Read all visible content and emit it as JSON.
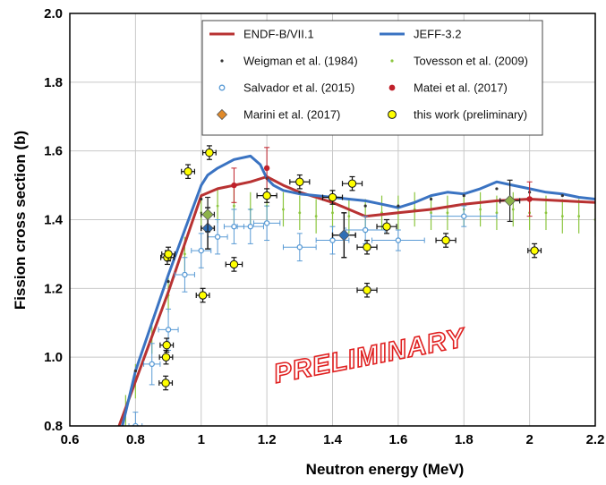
{
  "chart_data": {
    "type": "scatter",
    "xlabel": "Neutron energy (MeV)",
    "ylabel": "Fission cross section (b)",
    "xlim": [
      0.6,
      2.2
    ],
    "ylim": [
      0.8,
      2.0
    ],
    "xticks": [
      "0.6",
      "0.8",
      "1",
      "1.2",
      "1.4",
      "1.6",
      "1.8",
      "2",
      "2.2"
    ],
    "yticks": [
      "0.8",
      "1.0",
      "1.2",
      "1.4",
      "1.6",
      "1.8",
      "2.0"
    ],
    "grid": true,
    "legend_position": "top-right",
    "watermark": "PRELIMINARY",
    "series": [
      {
        "name": "ENDF-B/VII.1",
        "kind": "line",
        "color": "#b83232",
        "x": [
          0.75,
          0.8,
          0.85,
          0.9,
          0.95,
          1.0,
          1.05,
          1.1,
          1.15,
          1.2,
          1.25,
          1.3,
          1.35,
          1.4,
          1.45,
          1.5,
          1.6,
          1.7,
          1.8,
          1.9,
          2.0,
          2.1,
          2.2
        ],
        "y": [
          0.8,
          0.93,
          1.06,
          1.19,
          1.33,
          1.47,
          1.49,
          1.5,
          1.51,
          1.525,
          1.5,
          1.48,
          1.465,
          1.45,
          1.43,
          1.41,
          1.42,
          1.43,
          1.445,
          1.455,
          1.46,
          1.455,
          1.45
        ]
      },
      {
        "name": "JEFF-3.2",
        "kind": "line",
        "color": "#3a73c2",
        "x": [
          0.76,
          0.8,
          0.85,
          0.9,
          0.95,
          1.0,
          1.02,
          1.05,
          1.1,
          1.15,
          1.18,
          1.2,
          1.22,
          1.25,
          1.3,
          1.35,
          1.4,
          1.45,
          1.5,
          1.55,
          1.6,
          1.65,
          1.7,
          1.75,
          1.8,
          1.85,
          1.9,
          1.95,
          2.0,
          2.05,
          2.1,
          2.15,
          2.2
        ],
        "y": [
          0.8,
          0.96,
          1.1,
          1.24,
          1.37,
          1.5,
          1.53,
          1.55,
          1.575,
          1.585,
          1.56,
          1.52,
          1.5,
          1.485,
          1.475,
          1.47,
          1.465,
          1.46,
          1.455,
          1.445,
          1.435,
          1.45,
          1.47,
          1.48,
          1.475,
          1.49,
          1.51,
          1.5,
          1.49,
          1.48,
          1.475,
          1.465,
          1.46
        ]
      },
      {
        "name": "Weigman et al. (1984)",
        "kind": "points",
        "color": "#333333",
        "x": [
          0.8,
          0.9,
          1.0,
          1.1,
          1.2,
          1.3,
          1.4,
          1.5,
          1.6,
          1.7,
          1.8,
          1.9,
          2.0,
          2.1
        ],
        "y": [
          0.96,
          1.22,
          1.46,
          1.5,
          1.52,
          1.48,
          1.46,
          1.44,
          1.44,
          1.46,
          1.47,
          1.49,
          1.48,
          1.47
        ]
      },
      {
        "name": "Tovesson et al. (2009)",
        "kind": "band",
        "color": "#8cc63f",
        "x": [
          0.77,
          0.8,
          0.85,
          0.9,
          0.95,
          1.0,
          1.05,
          1.1,
          1.15,
          1.2,
          1.25,
          1.3,
          1.35,
          1.4,
          1.45,
          1.5,
          1.55,
          1.6,
          1.65,
          1.7,
          1.75,
          1.8,
          1.85,
          1.9,
          1.95,
          2.0,
          2.05,
          2.1,
          2.15,
          2.2
        ],
        "y": [
          0.84,
          0.93,
          1.06,
          1.18,
          1.3,
          1.42,
          1.44,
          1.44,
          1.43,
          1.44,
          1.43,
          1.42,
          1.41,
          1.42,
          1.41,
          1.41,
          1.42,
          1.42,
          1.43,
          1.42,
          1.42,
          1.43,
          1.43,
          1.42,
          1.43,
          1.42,
          1.42,
          1.41,
          1.41,
          1.4
        ],
        "err": 0.05
      },
      {
        "name": "Salvador et al. (2015)",
        "kind": "points",
        "color": "#5a9bd5",
        "x": [
          0.8,
          0.85,
          0.9,
          0.95,
          1.0,
          1.05,
          1.1,
          1.15,
          1.2,
          1.3,
          1.4,
          1.5,
          1.6,
          1.8
        ],
        "y": [
          0.8,
          0.98,
          1.08,
          1.24,
          1.31,
          1.35,
          1.38,
          1.38,
          1.39,
          1.32,
          1.34,
          1.37,
          1.34,
          1.41
        ],
        "xerr": [
          0.02,
          0.025,
          0.03,
          0.03,
          0.03,
          0.03,
          0.03,
          0.04,
          0.04,
          0.05,
          0.05,
          0.06,
          0.08,
          0.1
        ],
        "yerr": [
          0.04,
          0.06,
          0.06,
          0.05,
          0.05,
          0.05,
          0.05,
          0.05,
          0.05,
          0.04,
          0.04,
          0.04,
          0.03,
          0.03
        ]
      },
      {
        "name": "Matei et al. (2017)",
        "kind": "points",
        "color": "#c0202a",
        "x": [
          1.1,
          1.2,
          2.0
        ],
        "y": [
          1.5,
          1.55,
          1.46
        ],
        "yerr": [
          0.05,
          0.06,
          0.05
        ]
      },
      {
        "name": "Marini et al. (2017)",
        "kind": "points",
        "color": "#e08a2a",
        "x": [
          1.02,
          1.94
        ],
        "y": [
          1.415,
          1.455
        ],
        "xerr": [
          0.02,
          0.03
        ],
        "yerr": [
          0.05,
          0.06
        ]
      },
      {
        "name": "this work (preliminary)",
        "kind": "points",
        "color": "#ffff00",
        "x": [
          0.892,
          0.893,
          0.895,
          0.897,
          0.9,
          0.96,
          1.005,
          1.025,
          1.1,
          1.2,
          1.3,
          1.4,
          1.46,
          1.505,
          1.505,
          1.565,
          1.745,
          2.015
        ],
        "y": [
          0.925,
          1.0,
          1.035,
          1.29,
          1.3,
          1.54,
          1.18,
          1.595,
          1.27,
          1.47,
          1.51,
          1.465,
          1.505,
          1.32,
          1.195,
          1.38,
          1.34,
          1.31
        ],
        "xerr": [
          0.02,
          0.02,
          0.02,
          0.02,
          0.02,
          0.02,
          0.02,
          0.02,
          0.025,
          0.03,
          0.03,
          0.03,
          0.03,
          0.03,
          0.03,
          0.03,
          0.03,
          0.02
        ],
        "yerr": [
          0.02,
          0.02,
          0.02,
          0.02,
          0.02,
          0.02,
          0.02,
          0.02,
          0.02,
          0.02,
          0.02,
          0.02,
          0.02,
          0.02,
          0.02,
          0.02,
          0.02,
          0.02
        ]
      }
    ],
    "highlight_points": [
      {
        "x": 1.02,
        "y": 1.375,
        "color": "#2f6fb5",
        "xerr": 0.02,
        "yerr": 0.06
      },
      {
        "x": 1.435,
        "y": 1.355,
        "color": "#2f6fb5",
        "xerr": 0.035,
        "yerr": 0.065
      }
    ]
  }
}
